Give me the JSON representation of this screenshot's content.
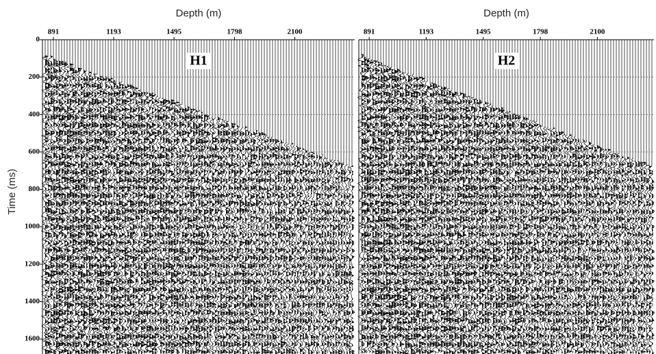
{
  "chart_data": [
    {
      "type": "wiggle",
      "xlabel": "Depth (m)",
      "ylabel": "Time (ms)",
      "annotation": "H1",
      "xlim": [
        836,
        2400
      ],
      "xticks": [
        891,
        1193,
        1495,
        1798,
        2100
      ],
      "ylim": [
        0,
        1680
      ],
      "yticks": [
        0,
        200,
        400,
        600,
        800,
        1000,
        1200,
        1400,
        1600
      ],
      "grid": true
    },
    {
      "type": "wiggle",
      "xlabel": "Depth (m)",
      "annotation": "H2",
      "xlim": [
        836,
        2400
      ],
      "xticks": [
        891,
        1193,
        1495,
        1798,
        2100
      ],
      "ylim": [
        0,
        1680
      ],
      "grid": true
    }
  ]
}
